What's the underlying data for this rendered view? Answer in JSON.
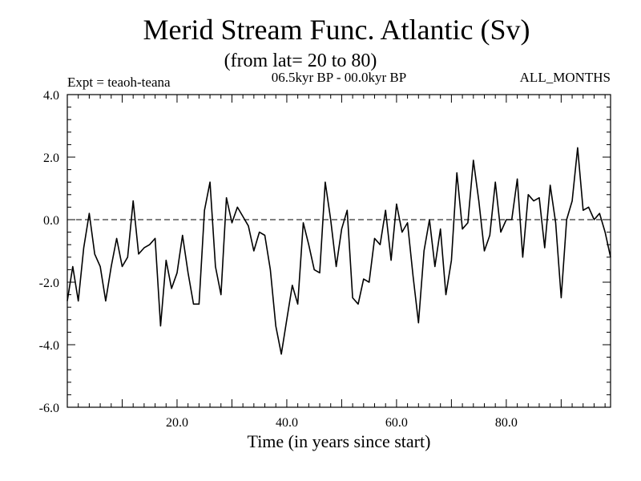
{
  "chart_data": {
    "type": "line",
    "title": "Merid Stream Func. Atlantic (Sv)",
    "subtitle": "(from lat= 20 to 80)",
    "experiment_label": "Expt = teaoh-teana",
    "period_label": "06.5kyr BP - 00.0kyr BP",
    "season_label": "ALL_MONTHS",
    "xlabel": "Time (in years since start)",
    "ylabel": "",
    "xlim": [
      0,
      99
    ],
    "ylim": [
      -6.0,
      4.0
    ],
    "x_ticks": [
      "20.0",
      "40.0",
      "60.0",
      "80.0"
    ],
    "x_tick_values": [
      20,
      40,
      60,
      80
    ],
    "y_ticks": [
      "4.0",
      "2.0",
      "0.0",
      "-2.0",
      "-4.0",
      "-6.0"
    ],
    "y_tick_values": [
      4,
      2,
      0,
      -2,
      -4,
      -6
    ],
    "reference_line": 0.0,
    "series": [
      {
        "name": "teaoh-teana",
        "x": [
          0,
          1,
          2,
          3,
          4,
          5,
          6,
          7,
          8,
          9,
          10,
          11,
          12,
          13,
          14,
          15,
          16,
          17,
          18,
          19,
          20,
          21,
          22,
          23,
          24,
          25,
          26,
          27,
          28,
          29,
          30,
          31,
          32,
          33,
          34,
          35,
          36,
          37,
          38,
          39,
          40,
          41,
          42,
          43,
          44,
          45,
          46,
          47,
          48,
          49,
          50,
          51,
          52,
          53,
          54,
          55,
          56,
          57,
          58,
          59,
          60,
          61,
          62,
          63,
          64,
          65,
          66,
          67,
          68,
          69,
          70,
          71,
          72,
          73,
          74,
          75,
          76,
          77,
          78,
          79,
          80,
          81,
          82,
          83,
          84,
          85,
          86,
          87,
          88,
          89,
          90,
          91,
          92,
          93,
          94,
          95,
          96,
          97,
          98,
          99
        ],
        "values": [
          -2.6,
          -1.5,
          -2.6,
          -0.9,
          0.2,
          -1.1,
          -1.5,
          -2.6,
          -1.5,
          -0.6,
          -1.5,
          -1.2,
          0.6,
          -1.1,
          -0.9,
          -0.8,
          -0.6,
          -3.4,
          -1.3,
          -2.2,
          -1.7,
          -0.5,
          -1.7,
          -2.7,
          -2.7,
          0.3,
          1.2,
          -1.5,
          -2.4,
          0.7,
          -0.1,
          0.4,
          0.1,
          -0.2,
          -1.0,
          -0.4,
          -0.5,
          -1.6,
          -3.4,
          -4.3,
          -3.2,
          -2.1,
          -2.7,
          -0.1,
          -0.8,
          -1.6,
          -1.7,
          1.2,
          0.0,
          -1.5,
          -0.3,
          0.3,
          -2.5,
          -2.7,
          -1.9,
          -2.0,
          -0.6,
          -0.8,
          0.3,
          -1.3,
          0.5,
          -0.4,
          -0.1,
          -1.8,
          -3.3,
          -1.0,
          0.0,
          -1.5,
          -0.3,
          -2.4,
          -1.3,
          1.5,
          -0.3,
          -0.1,
          1.9,
          0.6,
          -1.0,
          -0.5,
          1.2,
          -0.4,
          0.0,
          0.0,
          1.3,
          -1.2,
          0.8,
          0.6,
          0.7,
          -0.9,
          1.1,
          -0.1,
          -2.5,
          0.0,
          0.6,
          2.3,
          0.3,
          0.4,
          0.0,
          0.2,
          -0.4,
          -1.2
        ]
      }
    ]
  }
}
